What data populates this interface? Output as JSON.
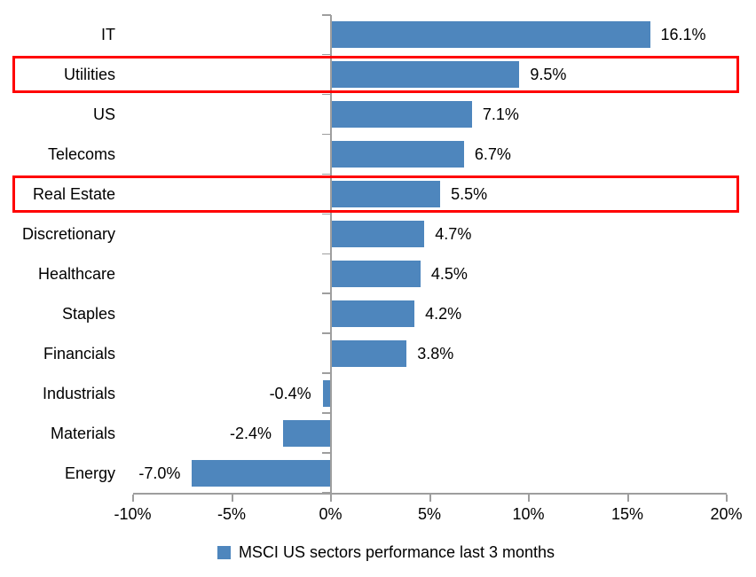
{
  "chart_data": {
    "type": "bar",
    "orientation": "horizontal",
    "title": "",
    "categories": [
      "IT",
      "Utilities",
      "US",
      "Telecoms",
      "Real Estate",
      "Discretionary",
      "Healthcare",
      "Staples",
      "Financials",
      "Industrials",
      "Materials",
      "Energy"
    ],
    "values": [
      16.1,
      9.5,
      7.1,
      6.7,
      5.5,
      4.7,
      4.5,
      4.2,
      3.8,
      -0.4,
      -2.4,
      -7.0
    ],
    "value_labels": [
      "16.1%",
      "9.5%",
      "7.1%",
      "6.7%",
      "5.5%",
      "4.7%",
      "4.5%",
      "4.2%",
      "3.8%",
      "-0.4%",
      "-2.4%",
      "-7.0%"
    ],
    "x_axis": {
      "xlim": [
        -10,
        20
      ],
      "ticks": [
        -10,
        -5,
        0,
        5,
        10,
        15,
        20
      ],
      "tick_labels": [
        "-10%",
        "-5%",
        "0%",
        "5%",
        "10%",
        "15%",
        "20%"
      ]
    },
    "legend": {
      "label": "MSCI US sectors performance last 3 months",
      "marker": "square",
      "position": "bottom-center"
    },
    "highlighted_categories": [
      "Utilities",
      "Real Estate"
    ],
    "colors": {
      "bar": "#4E86BD",
      "highlight_border": "#FF0000",
      "axis": "#9E9E9E",
      "text": "#000000"
    },
    "grid": false
  }
}
